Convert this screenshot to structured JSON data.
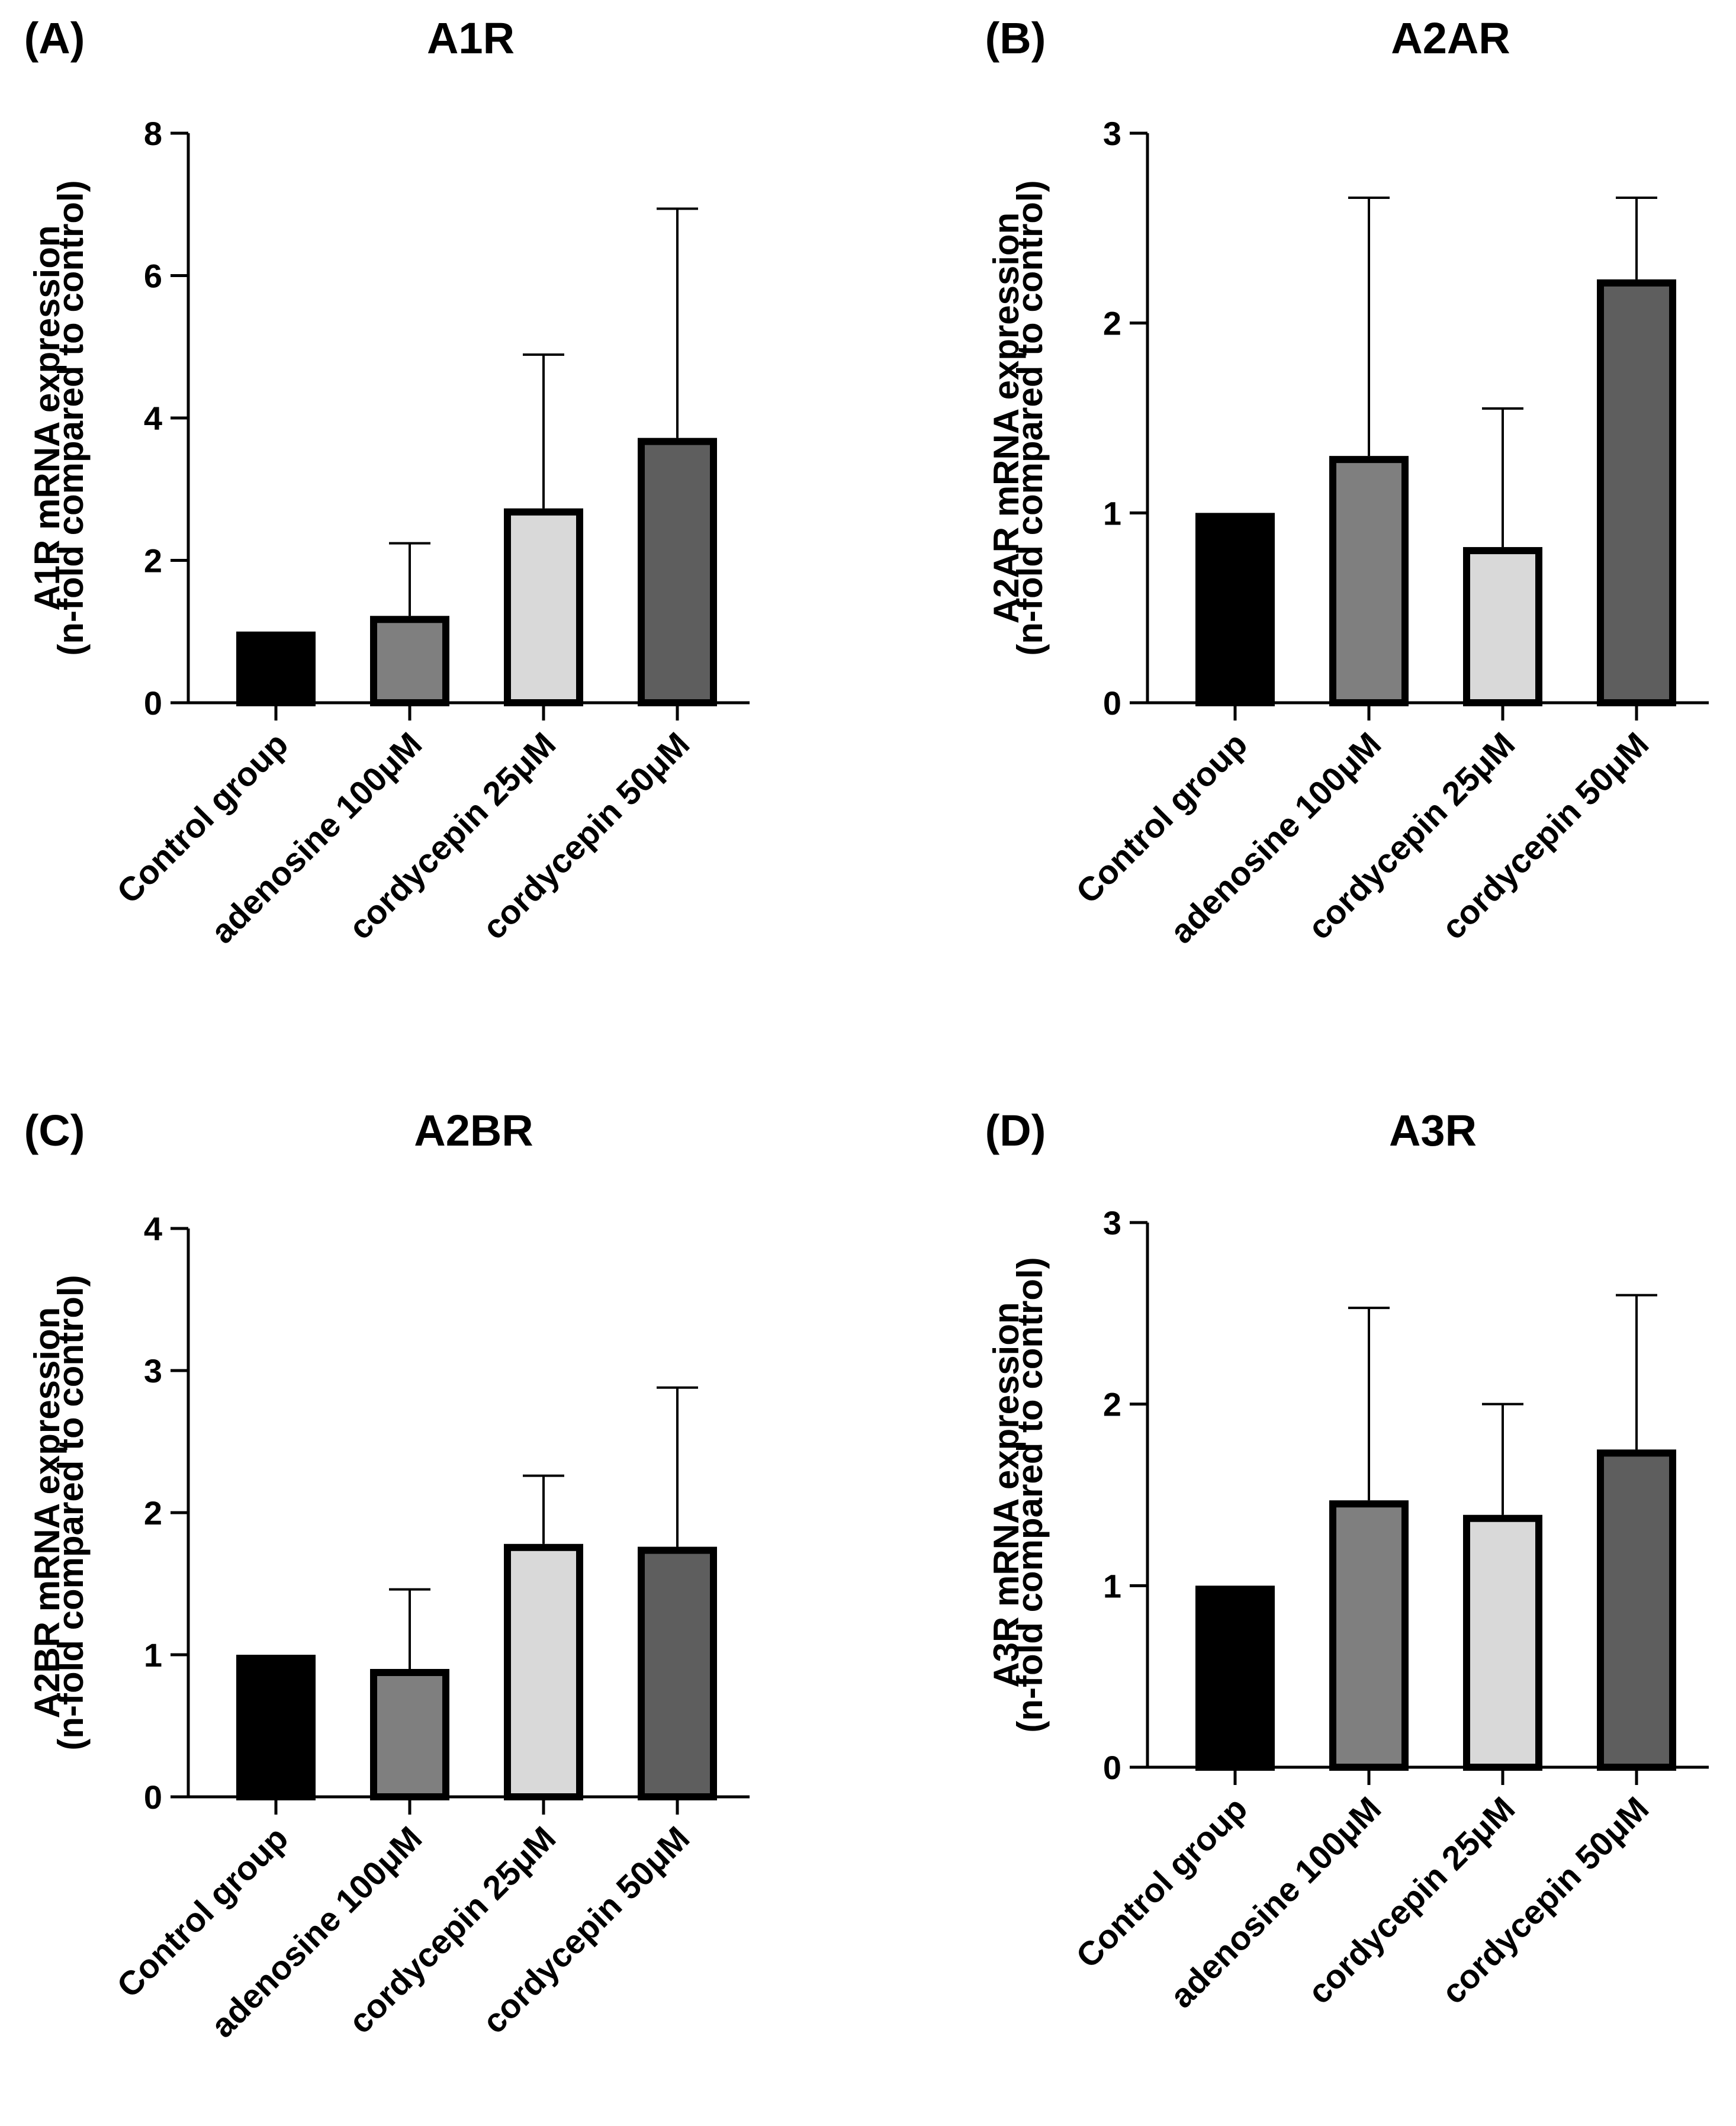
{
  "chart_data": [
    {
      "type": "bar",
      "panel_label": "(A)",
      "title": "A1R",
      "ylabel": [
        "A1R mRNA expression",
        "(n-fold compared to control)"
      ],
      "xlabel": "",
      "ylim": [
        0,
        8
      ],
      "yticks": [
        "0",
        "2",
        "4",
        "6",
        "8"
      ],
      "categories": [
        "Control group",
        "adenosine 100μM",
        "cordycepin 25μM",
        "cordycepin 50μM"
      ],
      "values": [
        1.0,
        1.22,
        2.73,
        3.72
      ],
      "error_upper": [
        1.0,
        2.24,
        4.89,
        6.94
      ],
      "colors": [
        "#000000",
        "#7f7f7f",
        "#d9d9d9",
        "#5e5e5e"
      ]
    },
    {
      "type": "bar",
      "panel_label": "(B)",
      "title": "A2AR",
      "ylabel": [
        "A2AR mRNA expression",
        "(n-fold compared to control)"
      ],
      "xlabel": "",
      "ylim": [
        0,
        3
      ],
      "yticks": [
        "0",
        "1",
        "2",
        "3"
      ],
      "categories": [
        "Control group",
        "adenosine 100μM",
        "cordycepin 25μM",
        "cordycepin 50μM"
      ],
      "values": [
        1.0,
        1.3,
        0.82,
        2.23
      ],
      "error_upper": [
        1.0,
        2.66,
        1.55,
        2.66
      ],
      "colors": [
        "#000000",
        "#7f7f7f",
        "#d9d9d9",
        "#5e5e5e"
      ]
    },
    {
      "type": "bar",
      "panel_label": "(C)",
      "title": "A2BR",
      "ylabel": [
        "A2BR mRNA expression",
        "(n-fold compared to control)"
      ],
      "xlabel": "",
      "ylim": [
        0,
        4
      ],
      "yticks": [
        "0",
        "1",
        "2",
        "3",
        "4"
      ],
      "categories": [
        "Control group",
        "adenosine 100μM",
        "cordycepin 25μM",
        "cordycepin 50μM"
      ],
      "values": [
        1.0,
        0.9,
        1.78,
        1.76
      ],
      "error_upper": [
        1.0,
        1.46,
        2.26,
        2.88
      ],
      "colors": [
        "#000000",
        "#7f7f7f",
        "#d9d9d9",
        "#5e5e5e"
      ]
    },
    {
      "type": "bar",
      "panel_label": "(D)",
      "title": "A3R",
      "ylabel": [
        "A3R mRNA expression",
        "(n-fold compared to control)"
      ],
      "xlabel": "",
      "ylim": [
        0,
        3
      ],
      "yticks": [
        "0",
        "1",
        "2",
        "3"
      ],
      "categories": [
        "Control group",
        "adenosine 100μM",
        "cordycepin 25μM",
        "cordycepin 50μM"
      ],
      "values": [
        1.0,
        1.47,
        1.39,
        1.75
      ],
      "error_upper": [
        1.0,
        2.53,
        2.0,
        2.6
      ],
      "colors": [
        "#000000",
        "#7f7f7f",
        "#d9d9d9",
        "#5e5e5e"
      ]
    }
  ]
}
